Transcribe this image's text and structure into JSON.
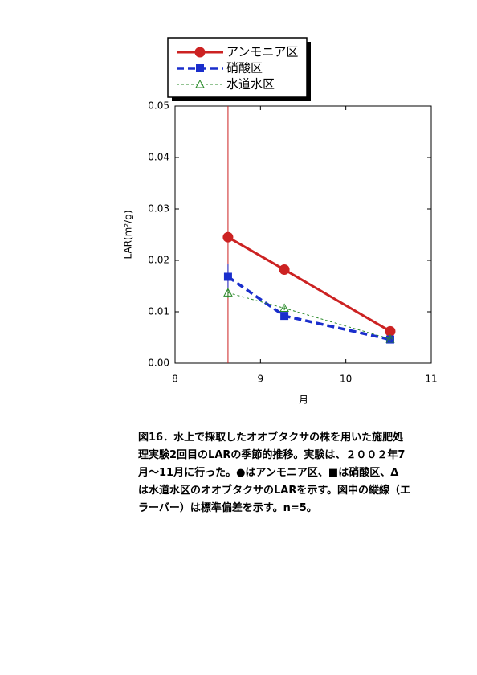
{
  "chart_data": {
    "type": "line",
    "x": [
      8.62,
      9.28,
      10.52
    ],
    "series": [
      {
        "name": "アンモニア区",
        "color": "#cc2222",
        "dash": "solid",
        "marker": "circle",
        "values": [
          0.0245,
          0.0182,
          0.0062
        ],
        "errors": [
          0.0005,
          0.0003,
          0.0004
        ]
      },
      {
        "name": "硝酸区",
        "color": "#1a2ecc",
        "dash": "dashed",
        "marker": "square",
        "values": [
          0.0168,
          0.0092,
          0.0046
        ],
        "errors": [
          0.0025,
          0.0004,
          0.0003
        ]
      },
      {
        "name": "水道水区",
        "color": "#2a8a2a",
        "dash": "dotted",
        "marker": "triangle",
        "values": [
          0.0137,
          0.0107,
          0.0047
        ],
        "errors": [
          0.001,
          0.0004,
          0.0003
        ]
      }
    ],
    "vline": 8.62,
    "xlim": [
      8,
      11
    ],
    "xticks": [
      8,
      9,
      10,
      11
    ],
    "ylim": [
      0,
      0.05
    ],
    "yticks": [
      {
        "value": 0,
        "label": "0.00"
      },
      0.01,
      0.02,
      0.03,
      0.04,
      0.05
    ],
    "x_label": "月",
    "y_label": "LAR(m²/g)"
  },
  "caption": [
    "図16．水上で採取したオオブタクサの株を用いた施肥処",
    "理実験2回目のLARの季節的推移。実験は、２００２年7",
    "月～11月に行った。●はアンモニア区、■は硝酸区、Δ",
    "は水道水区のオオブタクサのLARを示す。図中の縦線（エ",
    "ラーバー）は標準偏差を示す。n=5。"
  ]
}
